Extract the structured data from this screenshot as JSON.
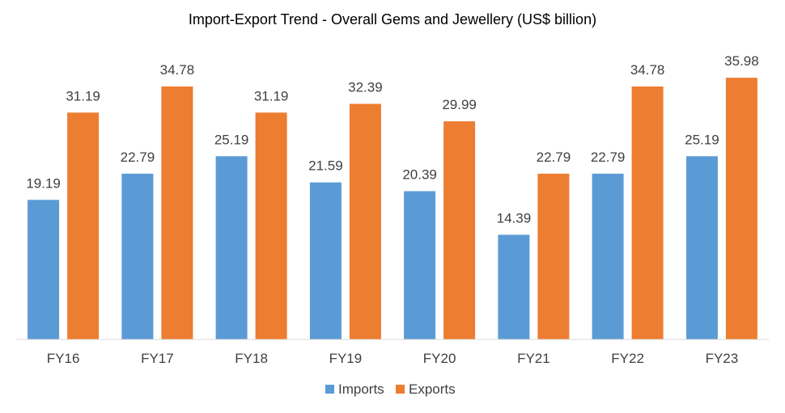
{
  "chart_data": {
    "type": "bar",
    "title": "Import-Export Trend - Overall Gems and Jewellery (US$ billion)",
    "xlabel": "",
    "ylabel": "",
    "ylim": [
      0,
      40
    ],
    "grid": false,
    "legend_position": "bottom",
    "categories": [
      "FY16",
      "FY17",
      "FY18",
      "FY19",
      "FY20",
      "FY21",
      "FY22",
      "FY23"
    ],
    "series": [
      {
        "name": "Imports",
        "color": "#5B9BD5",
        "values": [
          19.19,
          22.79,
          25.19,
          21.59,
          20.39,
          14.39,
          22.79,
          25.19
        ],
        "labels": [
          "19.19",
          "22.79",
          "25.19",
          "21.59",
          "20.39",
          "14.39",
          "22.79",
          "25.19"
        ]
      },
      {
        "name": "Exports",
        "color": "#ED7D31",
        "values": [
          31.19,
          34.78,
          31.19,
          32.39,
          29.99,
          22.79,
          34.78,
          35.98
        ],
        "labels": [
          "31.19",
          "34.78",
          "31.19",
          "32.39",
          "29.99",
          "22.79",
          "34.78",
          "35.98"
        ]
      }
    ]
  }
}
